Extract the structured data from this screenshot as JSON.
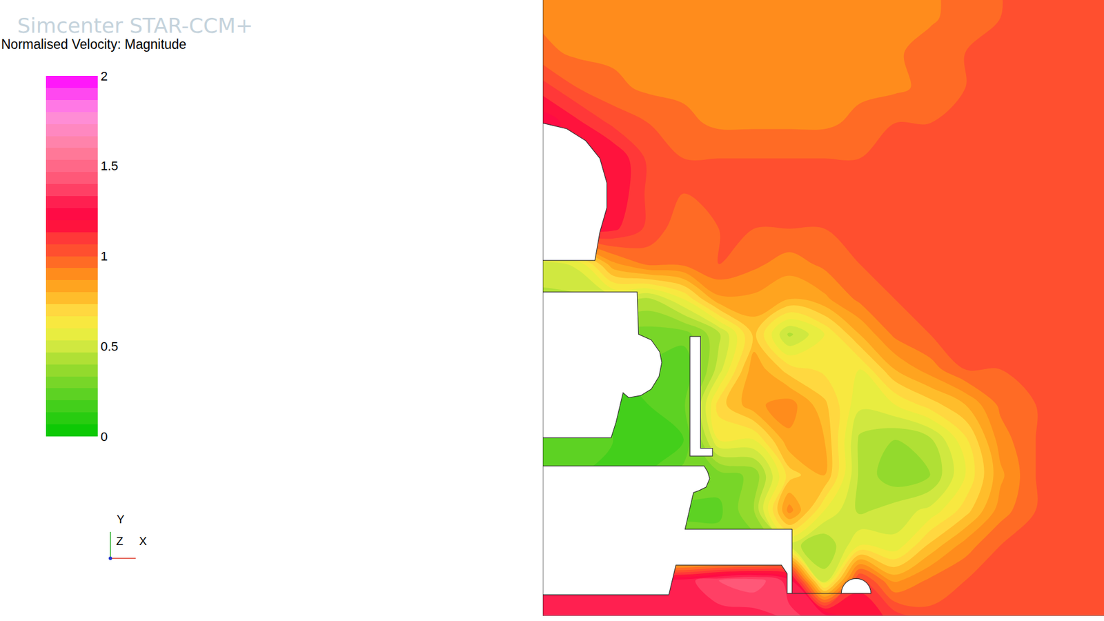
{
  "chart_data": {
    "type": "contour",
    "title": "Simcenter STAR-CCM+",
    "colorbar": {
      "title": "Normalised Velocity: Magnitude",
      "range": [
        0,
        2
      ],
      "ticks": [
        0,
        0.5,
        1,
        1.5,
        2
      ]
    },
    "axis_triad": [
      "X",
      "Y",
      "Z"
    ],
    "xlim": [
      0,
      797
    ],
    "ylim": [
      0,
      875
    ],
    "tick_labels": false,
    "grid": false,
    "x": [
      0,
      50,
      100,
      150,
      200,
      250,
      300,
      350,
      400,
      450,
      500,
      550,
      600,
      650,
      700,
      750,
      800
    ],
    "y": [
      0,
      50,
      100,
      150,
      200,
      250,
      300,
      350,
      400,
      450,
      500,
      550,
      600,
      650,
      700,
      750,
      800,
      850,
      900
    ],
    "z": [
      [
        1.3,
        1.3,
        1.3,
        1.3,
        1.3,
        1.3,
        1.3,
        1.35,
        1.3,
        1.2,
        1.1,
        1.02,
        1.0,
        1.0,
        1.0,
        1.0,
        1.0
      ],
      [
        1.3,
        1.3,
        1.3,
        1.3,
        1.3,
        1.4,
        1.45,
        1.3,
        0.5,
        1.1,
        0.85,
        0.95,
        1.0,
        1.0,
        1.0,
        1.0,
        1.0
      ],
      [
        0.3,
        0.3,
        0.3,
        0.3,
        0.3,
        0.3,
        0.3,
        0.5,
        0.4,
        0.6,
        0.55,
        0.75,
        0.9,
        1.0,
        1.0,
        1.0,
        1.0
      ],
      [
        0.2,
        0.2,
        0.2,
        0.2,
        0.25,
        0.25,
        0.4,
        0.9,
        0.6,
        0.45,
        0.5,
        0.55,
        0.7,
        0.9,
        1.0,
        1.0,
        1.0
      ],
      [
        0.2,
        0.2,
        0.2,
        0.2,
        0.3,
        0.3,
        0.35,
        0.7,
        0.8,
        0.45,
        0.35,
        0.4,
        0.6,
        0.85,
        1.0,
        1.0,
        1.0
      ],
      [
        0.25,
        0.25,
        0.2,
        0.15,
        0.2,
        0.6,
        0.6,
        0.85,
        0.8,
        0.45,
        0.4,
        0.45,
        0.65,
        0.9,
        1.0,
        1.0,
        1.0
      ],
      [
        0.2,
        0.2,
        0.2,
        0.2,
        0.25,
        0.7,
        0.85,
        0.9,
        0.75,
        0.55,
        0.6,
        0.7,
        0.8,
        0.95,
        1.0,
        1.0,
        1.0
      ],
      [
        0.2,
        0.2,
        0.2,
        0.25,
        0.2,
        0.5,
        0.85,
        0.7,
        0.65,
        0.6,
        0.8,
        0.9,
        1.0,
        1.0,
        1.0,
        1.0,
        1.0
      ],
      [
        0.3,
        0.3,
        0.3,
        0.3,
        0.3,
        0.45,
        0.75,
        0.45,
        0.6,
        0.8,
        0.95,
        1.0,
        1.0,
        1.0,
        1.0,
        1.0,
        1.0
      ],
      [
        0.45,
        0.45,
        0.5,
        0.45,
        0.6,
        0.85,
        0.85,
        0.8,
        0.85,
        0.95,
        1.0,
        1.0,
        1.0,
        1.0,
        1.0,
        1.0,
        1.0
      ],
      [
        0.5,
        0.55,
        0.85,
        0.95,
        0.95,
        1.0,
        0.95,
        0.9,
        0.95,
        1.0,
        1.0,
        1.0,
        1.0,
        1.0,
        1.0,
        1.0,
        1.0
      ],
      [
        1.2,
        1.2,
        1.15,
        1.05,
        0.95,
        1.0,
        1.0,
        1.0,
        1.0,
        1.0,
        1.0,
        1.0,
        1.0,
        1.0,
        1.0,
        1.0,
        1.0
      ],
      [
        1.2,
        1.2,
        1.2,
        1.05,
        1.0,
        1.0,
        1.0,
        1.0,
        1.0,
        1.0,
        1.0,
        1.0,
        1.0,
        1.0,
        1.0,
        1.0,
        1.0
      ],
      [
        1.2,
        1.2,
        1.2,
        1.05,
        1.0,
        1.0,
        1.0,
        1.0,
        1.0,
        1.0,
        1.0,
        1.0,
        1.0,
        1.0,
        1.0,
        1.0,
        1.0
      ],
      [
        1.25,
        1.15,
        1.05,
        1.0,
        0.95,
        0.92,
        0.92,
        0.92,
        0.92,
        0.95,
        1.0,
        1.0,
        1.0,
        1.0,
        1.0,
        1.0,
        1.0
      ],
      [
        1.1,
        1.0,
        0.95,
        0.92,
        0.92,
        0.92,
        0.92,
        0.92,
        0.92,
        0.92,
        0.92,
        0.95,
        1.0,
        1.0,
        1.0,
        1.0,
        1.0
      ],
      [
        0.95,
        0.92,
        0.92,
        0.92,
        0.92,
        0.92,
        0.92,
        0.92,
        0.92,
        0.92,
        0.92,
        0.97,
        1.0,
        1.0,
        1.0,
        1.0,
        1.0
      ],
      [
        0.92,
        0.92,
        0.92,
        0.92,
        0.92,
        0.92,
        0.92,
        0.92,
        0.92,
        0.92,
        0.92,
        0.92,
        0.97,
        1.0,
        1.0,
        1.0,
        1.0
      ],
      [
        0.92,
        0.92,
        0.92,
        0.92,
        0.92,
        0.92,
        0.92,
        0.92,
        0.92,
        0.92,
        0.92,
        0.92,
        0.97,
        1.0,
        1.0,
        1.0,
        1.0
      ]
    ]
  }
}
